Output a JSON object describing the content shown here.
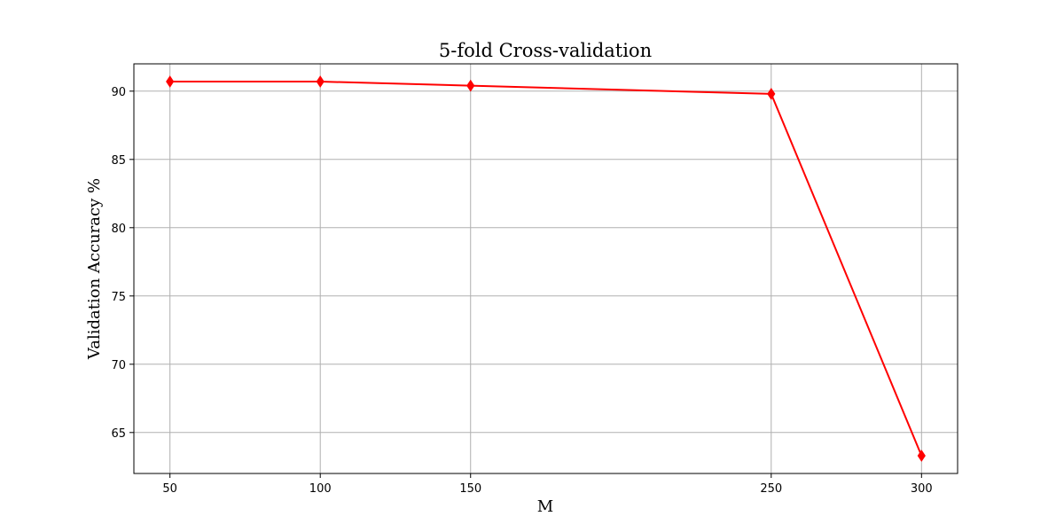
{
  "chart_data": {
    "type": "line",
    "title": "5-fold Cross-validation",
    "xlabel": "M",
    "ylabel": "Validation Accuracy %",
    "x": [
      50,
      100,
      150,
      250,
      300
    ],
    "xticks": [
      50,
      100,
      150,
      250,
      300
    ],
    "yticks": [
      65,
      70,
      75,
      80,
      85,
      90
    ],
    "xlim": [
      38,
      312
    ],
    "ylim": [
      62,
      92
    ],
    "grid": true,
    "series": [
      {
        "values": [
          90.7,
          90.7,
          90.4,
          89.8,
          63.3
        ],
        "color": "#ff0000",
        "marker": "thin-diamond"
      }
    ]
  }
}
